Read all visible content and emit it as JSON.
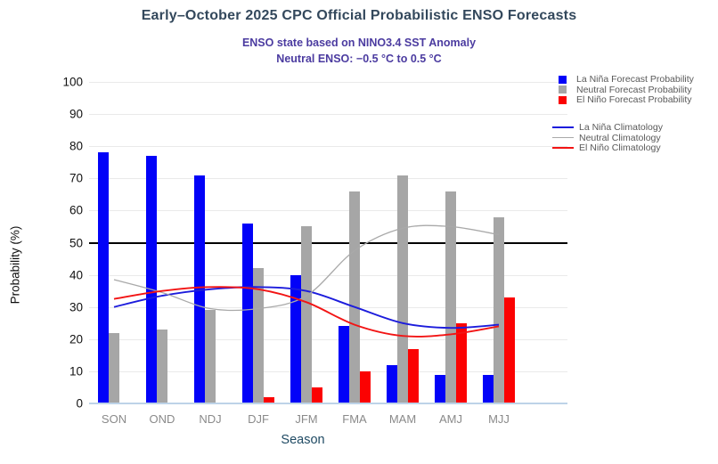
{
  "title": "Early–October 2025 CPC Official Probabilistic ENSO Forecasts",
  "subtitle_line1": "ENSO state based on NINO3.4 SST Anomaly",
  "subtitle_line2": "Neutral ENSO: −0.5 °C to 0.5 °C",
  "axes": {
    "y_label": "Probability (%)",
    "x_label": "Season",
    "y_ticks": [
      0,
      10,
      20,
      30,
      40,
      50,
      60,
      70,
      80,
      90,
      100
    ],
    "x_ticks": [
      "SON",
      "OND",
      "NDJ",
      "DJF",
      "JFM",
      "FMA",
      "MAM",
      "AMJ",
      "MJJ"
    ]
  },
  "colors": {
    "la_nina_bar": "#0202f8",
    "neutral_bar": "#a6a6a6",
    "el_nino_bar": "#fb0202",
    "la_nina_line": "#1c1cdc",
    "neutral_line": "#a9a9a9",
    "el_nino_line": "#f21414",
    "reference_line": "#000000",
    "gridline": "#eaeaea",
    "baseline": "#bdd3e8",
    "title_text": "#33485c",
    "subtitle_text": "#4b3ba0",
    "legend_text": "#595959"
  },
  "chart_data": {
    "type": "bar",
    "title": "Early–October 2025 CPC Official Probabilistic ENSO Forecasts",
    "xlabel": "Season",
    "ylabel": "Probability (%)",
    "ylim": [
      0,
      100
    ],
    "grid": true,
    "legend_position": "top-right",
    "reference_line_y": 50,
    "categories": [
      "SON",
      "OND",
      "NDJ",
      "DJF",
      "JFM",
      "FMA",
      "MAM",
      "AMJ",
      "MJJ"
    ],
    "series": [
      {
        "name": "La Niña Forecast Probability",
        "kind": "bar",
        "color": "#0202f8",
        "values": [
          78,
          77,
          71,
          56,
          40,
          24,
          12,
          9,
          9
        ]
      },
      {
        "name": "Neutral Forecast Probability",
        "kind": "bar",
        "color": "#a6a6a6",
        "values": [
          22,
          23,
          29,
          42,
          55,
          66,
          71,
          66,
          58
        ]
      },
      {
        "name": "El Niño Forecast Probability",
        "kind": "bar",
        "color": "#fb0202",
        "values": [
          0,
          0,
          0,
          2,
          5,
          10,
          17,
          25,
          33
        ]
      },
      {
        "name": "La Niña Climatology",
        "kind": "line",
        "color": "#1c1cdc",
        "values": [
          30,
          33.5,
          35.5,
          36.2,
          35,
          30,
          25,
          23.5,
          24.5
        ]
      },
      {
        "name": "Neutral Climatology",
        "kind": "line",
        "color": "#a9a9a9",
        "values": [
          38.5,
          34.5,
          29.5,
          29.5,
          33.5,
          47.5,
          54.5,
          55,
          52.5
        ]
      },
      {
        "name": "El Niño Climatology",
        "kind": "line",
        "color": "#f21414",
        "values": [
          32.5,
          35,
          36.2,
          35.5,
          31.5,
          24.5,
          21,
          21.5,
          24
        ]
      }
    ]
  },
  "legend": {
    "bar_items": [
      {
        "label": "La Niña Forecast Probability",
        "color": "#0202f8"
      },
      {
        "label": "Neutral Forecast Probability",
        "color": "#a6a6a6"
      },
      {
        "label": "El Niño Forecast Probability",
        "color": "#fb0202"
      }
    ],
    "line_items": [
      {
        "label": "La Niña Climatology",
        "color": "#1c1cdc",
        "thickness": 2
      },
      {
        "label": "Neutral Climatology",
        "color": "#a9a9a9",
        "thickness": 1
      },
      {
        "label": "El Niño Climatology",
        "color": "#f21414",
        "thickness": 2
      }
    ]
  }
}
